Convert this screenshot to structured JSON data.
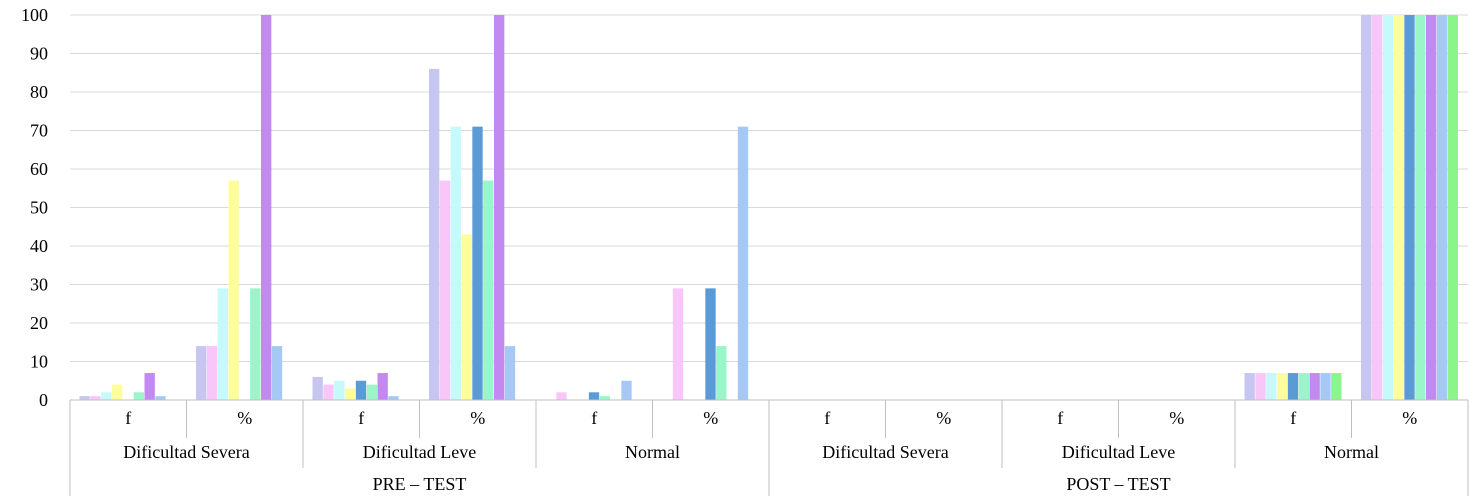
{
  "chart_data": {
    "type": "bar",
    "ylim": [
      0,
      100
    ],
    "yticks": [
      0,
      10,
      20,
      30,
      40,
      50,
      60,
      70,
      80,
      90,
      100
    ],
    "grid": true,
    "colors": [
      "#c6c6f0",
      "#f8c6f8",
      "#c6fafa",
      "#fdfd9c",
      "#5b9bd5",
      "#9af5c8",
      "#c28af0",
      "#a6c8f5",
      "#8af58a"
    ],
    "groups": [
      {
        "label": "PRE – TEST",
        "subgroups": [
          {
            "label": "Dificultad Severa",
            "categories": [
              {
                "label": "f",
                "values": [
                  1,
                  1,
                  2,
                  4,
                  null,
                  2,
                  7,
                  1
                ]
              },
              {
                "label": "%",
                "values": [
                  14,
                  14,
                  29,
                  57,
                  null,
                  29,
                  100,
                  14
                ]
              }
            ]
          },
          {
            "label": "Dificultad Leve",
            "categories": [
              {
                "label": "f",
                "values": [
                  6,
                  4,
                  5,
                  3,
                  5,
                  4,
                  7,
                  1
                ]
              },
              {
                "label": "%",
                "values": [
                  86,
                  57,
                  71,
                  43,
                  71,
                  57,
                  100,
                  14
                ]
              }
            ]
          },
          {
            "label": "Normal",
            "categories": [
              {
                "label": "f",
                "values": [
                  null,
                  2,
                  null,
                  null,
                  2,
                  1,
                  null,
                  5
                ]
              },
              {
                "label": "%",
                "values": [
                  null,
                  29,
                  null,
                  null,
                  29,
                  14,
                  null,
                  71
                ]
              }
            ]
          }
        ]
      },
      {
        "label": "POST – TEST",
        "subgroups": [
          {
            "label": "Dificultad Severa",
            "categories": [
              {
                "label": "f",
                "values": []
              },
              {
                "label": "%",
                "values": []
              }
            ]
          },
          {
            "label": "Dificultad Leve",
            "categories": [
              {
                "label": "f",
                "values": []
              },
              {
                "label": "%",
                "values": []
              }
            ]
          },
          {
            "label": "Normal",
            "categories": [
              {
                "label": "f",
                "values": [
                  7,
                  7,
                  7,
                  7,
                  7,
                  7,
                  7,
                  7,
                  7
                ]
              },
              {
                "label": "%",
                "values": [
                  100,
                  100,
                  100,
                  100,
                  100,
                  100,
                  100,
                  100,
                  100
                ]
              }
            ]
          }
        ]
      }
    ]
  }
}
